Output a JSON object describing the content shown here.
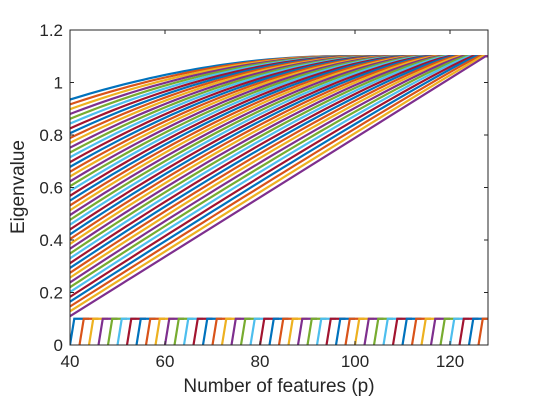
{
  "chart_data": {
    "type": "line",
    "title": "",
    "xlabel": "Number of features (p)",
    "ylabel": "Eigenvalue",
    "xlim": [
      40,
      128
    ],
    "ylim": [
      0,
      1.2
    ],
    "xticks": [
      "40",
      "60",
      "80",
      "100",
      "120"
    ],
    "yticks": [
      "0",
      "0.2",
      "0.4",
      "0.6",
      "0.8",
      "1",
      "1.2"
    ],
    "grid": false,
    "legend": "none",
    "colors": [
      "#0072BD",
      "#D95319",
      "#EDB120",
      "#7E2F8E",
      "#77AC30",
      "#4DBEEE",
      "#A2142F"
    ],
    "upper_curves": {
      "description_note": "",
      "count": 46,
      "plateau_value": 1.1,
      "start_value_first": 0.935,
      "start_value_last": 0.11,
      "plateau_x_first": 96,
      "plateau_x_last": 127.5,
      "final_drop_to_plateau_x": 128
    },
    "lower_sawtooth": {
      "top_value": 0.1,
      "bottom_value": 0.0,
      "period": 2,
      "x_start": 40,
      "x_end": 128
    }
  }
}
